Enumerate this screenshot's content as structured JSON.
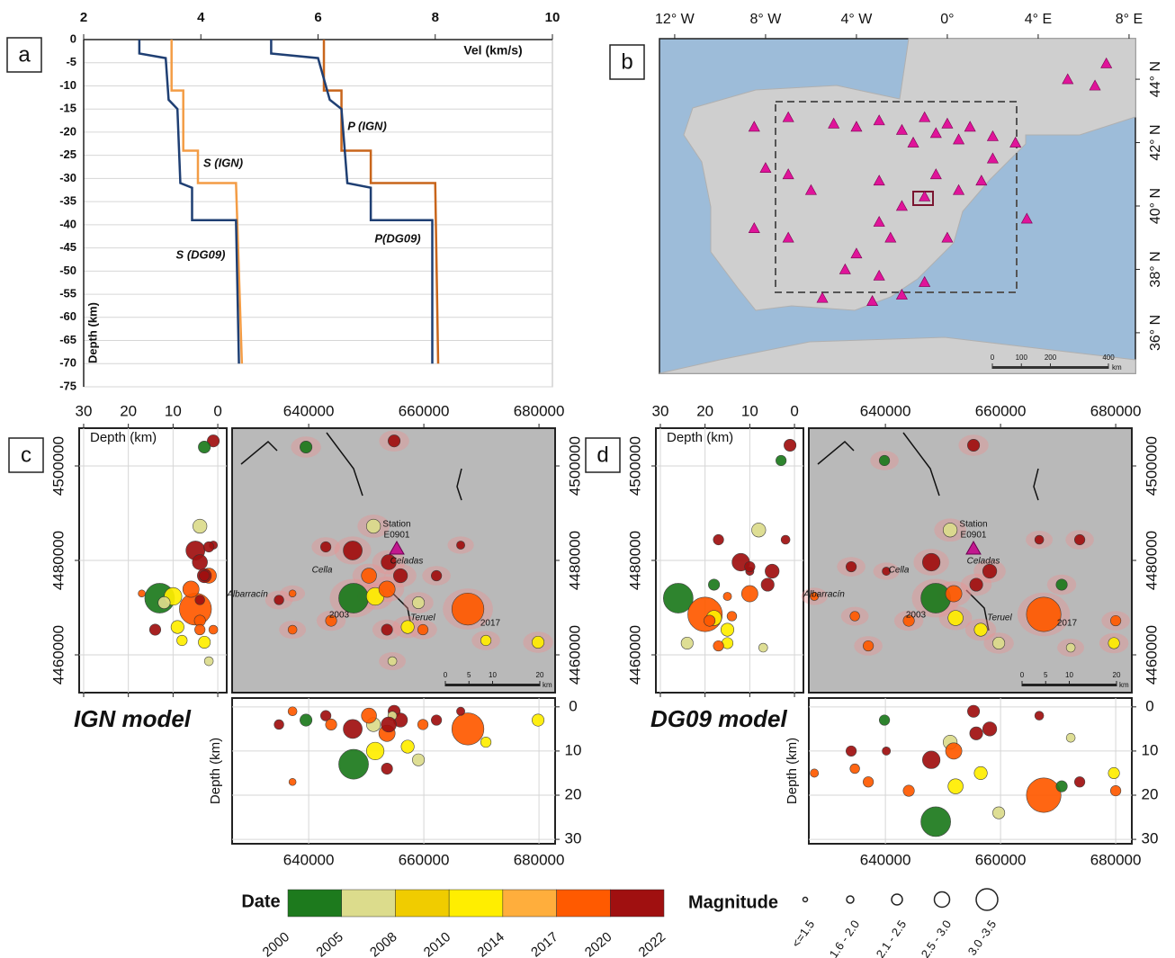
{
  "chart_data": [
    {
      "type": "line",
      "label": "a",
      "x_label": "Vel (km/s)",
      "y_label": "Depth (km)",
      "xlim": [
        2,
        10
      ],
      "xticks": [
        2,
        4,
        6,
        8,
        10
      ],
      "ylim": [
        -75,
        0
      ],
      "yticks": [
        0,
        -5,
        -10,
        -15,
        -20,
        -25,
        -30,
        -35,
        -40,
        -45,
        -50,
        -55,
        -60,
        -65,
        -70,
        -75
      ],
      "grid": true,
      "series": [
        {
          "name": "S (IGN)",
          "color": "#f39c45",
          "x": [
            3.5,
            3.5,
            3.7,
            3.7,
            3.95,
            3.95,
            4.6,
            4.7
          ],
          "values": [
            0,
            -11,
            -11,
            -24,
            -24,
            -31,
            -31,
            -70
          ]
        },
        {
          "name": "P (IGN)",
          "color": "#c8651b",
          "x": [
            6.1,
            6.1,
            6.4,
            6.4,
            6.9,
            6.9,
            8.0,
            8.05
          ],
          "values": [
            0,
            -11,
            -11,
            -24,
            -24,
            -31,
            -31,
            -70
          ]
        },
        {
          "name": "S (DG09)",
          "color": "#1f3f73",
          "x": [
            2.95,
            2.95,
            3.4,
            3.45,
            3.6,
            3.65,
            3.85,
            3.85,
            4.6,
            4.65
          ],
          "values": [
            0,
            -3,
            -4,
            -13,
            -15,
            -31,
            -32,
            -39,
            -39,
            -70
          ]
        },
        {
          "name": "P(DG09)",
          "color": "#1f3f73",
          "x": [
            5.2,
            5.2,
            6.0,
            6.2,
            6.4,
            6.5,
            6.9,
            6.9,
            7.95,
            7.95
          ],
          "values": [
            0,
            -3,
            -4,
            -13,
            -15,
            -31,
            -32,
            -39,
            -39,
            -70
          ]
        }
      ]
    },
    {
      "type": "map",
      "label": "b",
      "xlim": [
        -12.67,
        8.28
      ],
      "xticks": [
        {
          "value": -12,
          "label": "12° W"
        },
        {
          "value": -8,
          "label": "8° W"
        },
        {
          "value": -4,
          "label": "4° W"
        },
        {
          "value": 0,
          "label": "0°"
        },
        {
          "value": 4,
          "label": "4° E"
        },
        {
          "value": 8,
          "label": "8° E"
        }
      ],
      "ylim": [
        34.72,
        45.28
      ],
      "yticks": [
        {
          "value": 36,
          "label": "36° N"
        },
        {
          "value": 38,
          "label": "38° N"
        },
        {
          "value": 40,
          "label": "40° N"
        },
        {
          "value": 42,
          "label": "42° N"
        },
        {
          "value": 44,
          "label": "44° N"
        }
      ],
      "stations": {
        "color": "#e0149a",
        "x": [
          -1,
          0,
          1,
          -2,
          2,
          -0.5,
          0.5,
          -3,
          -1.5,
          3,
          -4,
          -5,
          -7,
          -8.5,
          -8,
          -7,
          -6,
          -3,
          -1,
          0.5,
          -3,
          -2.5,
          -4.5,
          -3,
          -1,
          -5.5,
          -3.3,
          -2,
          -7,
          -8.5,
          6.5,
          7,
          5.3,
          3.5,
          2,
          -4,
          1.5,
          -0.5,
          -2,
          0
        ],
        "y": [
          42.8,
          42.6,
          42.5,
          42.4,
          42.2,
          42.3,
          42.1,
          42.7,
          42,
          42,
          42.5,
          42.6,
          42.8,
          42.5,
          41.2,
          41,
          40.5,
          40.8,
          40.3,
          40.5,
          39.5,
          39,
          38,
          37.8,
          37.6,
          37.1,
          37,
          37.2,
          39,
          39.3,
          43.8,
          44.5,
          44,
          39.6,
          41.5,
          38.5,
          40.8,
          41,
          40,
          39
        ]
      },
      "scale_bar": [
        0,
        100,
        200,
        400
      ],
      "scale_unit": "km"
    },
    {
      "type": "seismicity",
      "label": "c",
      "model": "IGN model",
      "xlim": [
        626700,
        682800
      ],
      "xticks": [
        640000,
        660000,
        680000
      ],
      "ylim": [
        4452000,
        4508000
      ],
      "yticks": [
        4460000,
        4480000,
        4500000
      ],
      "depth_label": "Depth (km)",
      "depth_lim": [
        -2,
        31
      ],
      "depth_ticks": [
        0,
        10,
        20,
        30
      ],
      "annotations": [
        "Station",
        "E0901",
        "Celadas",
        "Cella",
        "Albarracín",
        "Teruel",
        "2003",
        "2017"
      ],
      "scale_bar": [
        0,
        5,
        10,
        20
      ],
      "scale_unit": "km",
      "events": {
        "x": [
          647800,
          667650,
          654840,
          639530,
          651250,
          647650,
          650470,
          651560,
          653600,
          655940,
          659060,
          666400,
          670780,
          679840,
          634840,
          637190,
          642970,
          643900,
          659840,
          654530,
          653900,
          662190,
          657190,
          653600,
          637190
        ],
        "y": [
          4472000,
          4469700,
          4505300,
          4504000,
          4487240,
          4482100,
          4476760,
          4472380,
          4473900,
          4476760,
          4471050,
          4483240,
          4463050,
          4462670,
          4471620,
          4465330,
          4482860,
          4467230,
          4465330,
          4458660,
          4479620,
          4476760,
          4465900,
          4465330,
          4473000
        ],
        "depth": [
          13,
          5,
          1,
          3,
          4,
          5,
          2,
          10,
          6,
          3,
          12,
          1,
          8,
          3,
          4,
          1,
          2,
          4,
          4,
          2,
          4,
          3,
          9,
          14,
          17
        ],
        "magnitude": [
          3.2,
          3.3,
          2.0,
          2.0,
          2.2,
          2.6,
          2.3,
          2.5,
          2.4,
          2.2,
          2.0,
          1.5,
          1.8,
          2.0,
          1.7,
          1.6,
          1.8,
          1.9,
          1.8,
          1.6,
          2.3,
          1.8,
          2.1,
          1.9,
          1.3
        ],
        "year": [
          2002,
          2018,
          2021,
          2003,
          2006,
          2021,
          2019,
          2012,
          2018,
          2022,
          2007,
          2021,
          2011,
          2013,
          2022,
          2019,
          2021,
          2018,
          2019,
          2006,
          2020,
          2021,
          2010,
          2020,
          2017
        ]
      }
    },
    {
      "type": "seismicity",
      "label": "d",
      "model": "DG09 model",
      "xlim": [
        626700,
        682800
      ],
      "xticks": [
        640000,
        660000,
        680000
      ],
      "ylim": [
        4452000,
        4508000
      ],
      "yticks": [
        4460000,
        4480000,
        4500000
      ],
      "depth_label": "Depth (km)",
      "depth_lim": [
        -2,
        31
      ],
      "depth_ticks": [
        0,
        10,
        20,
        30
      ],
      "annotations": [
        "Station",
        "E0901",
        "Celadas",
        "Cella",
        "Albarracín",
        "Teruel",
        "2003",
        "2017"
      ],
      "scale_bar": [
        0,
        5,
        10,
        20
      ],
      "scale_unit": "km",
      "events": {
        "x": [
          648750,
          667500,
          655310,
          639840,
          651250,
          647970,
          652190,
          651870,
          655780,
          659690,
          666720,
          680000,
          679690,
          634690,
          637030,
          640160,
          634060,
          644060,
          656560,
          672190,
          673750,
          658120,
          670620,
          627660
        ],
        "y": [
          4472000,
          4468570,
          4504380,
          4501150,
          4486430,
          4479620,
          4467800,
          4472950,
          4474860,
          4462480,
          4484380,
          4467230,
          4462480,
          4468190,
          4461900,
          4477710,
          4478660,
          4467230,
          4465330,
          4461520,
          4484380,
          4477710,
          4474860,
          4472380
        ],
        "depth": [
          26,
          20,
          1,
          3,
          8,
          12,
          18,
          10,
          6,
          24,
          2,
          19,
          15,
          14,
          17,
          10,
          10,
          19,
          15,
          7,
          17,
          5,
          18,
          15
        ],
        "magnitude": [
          3.2,
          3.4,
          2.0,
          1.8,
          2.2,
          2.5,
          2.3,
          2.4,
          2.1,
          2.0,
          1.6,
          1.8,
          1.9,
          1.7,
          1.8,
          1.5,
          1.8,
          1.9,
          2.1,
          1.6,
          1.8,
          2.2,
          1.9,
          1.5
        ],
        "year": [
          2002,
          2018,
          2021,
          2003,
          2006,
          2021,
          2012,
          2018,
          2022,
          2007,
          2021,
          2019,
          2013,
          2019,
          2018,
          2021,
          2020,
          2019,
          2010,
          2006,
          2021,
          2022,
          2002,
          2017
        ]
      }
    }
  ],
  "legend": {
    "date_title": "Date",
    "date_ticks": [
      2000,
      2005,
      2008,
      2010,
      2014,
      2017,
      2020,
      2022
    ],
    "date_colors": [
      "#1d7a1d",
      "#dcdc8c",
      "#f0cc00",
      "#ffee00",
      "#ffae3c",
      "#ff5a00",
      "#a01010"
    ],
    "magnitude_title": "Magnitude",
    "magnitude_classes": [
      "<=1.5",
      "1.6 - 2.0",
      "2.1 - 2.5",
      "2.5 - 3.0",
      "3.0 -3.5"
    ]
  }
}
